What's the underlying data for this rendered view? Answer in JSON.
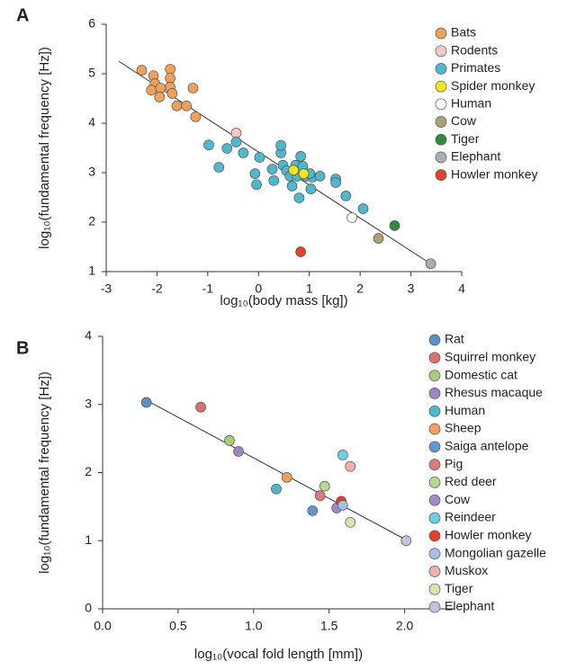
{
  "chart_data": [
    {
      "type": "scatter",
      "panel": "A",
      "x_label": "log₁₀(body mass [kg])",
      "y_label": "log₁₀(fundamental frequency [Hz])",
      "xlim": [
        -3,
        4
      ],
      "xticks": [
        -3,
        -2,
        -1,
        0,
        1,
        2,
        3,
        4
      ],
      "ylim": [
        1,
        6
      ],
      "yticks": [
        1,
        2,
        3,
        4,
        5,
        6
      ],
      "fit_line": {
        "x": [
          -2.75,
          3.4
        ],
        "y": [
          5.25,
          1.15
        ]
      },
      "series": [
        {
          "name": "Bats",
          "color": "#f0a05a",
          "x": [
            -2.3,
            -2.07,
            -2.04,
            -2.11,
            -1.93,
            -1.74,
            -1.74,
            -1.74,
            -1.95,
            -1.7,
            -1.61,
            -1.42,
            -1.29,
            -1.24
          ],
          "values": [
            5.07,
            4.96,
            4.8,
            4.67,
            4.71,
            5.09,
            4.91,
            4.73,
            4.53,
            4.6,
            4.35,
            4.35,
            4.71,
            4.13
          ]
        },
        {
          "name": "Rodents",
          "color": "#f5c8c8",
          "x": [
            -0.44
          ],
          "values": [
            3.8
          ]
        },
        {
          "name": "Primates",
          "color": "#4fb8cc",
          "x": [
            -0.98,
            -0.62,
            -0.44,
            -0.78,
            -0.3,
            -0.07,
            -0.04,
            0.02,
            0.27,
            0.3,
            0.44,
            0.48,
            0.55,
            0.62,
            0.66,
            0.73,
            0.76,
            0.83,
            0.87,
            0.8,
            0.94,
            1.06,
            1.21,
            1.03,
            1.52,
            1.52,
            1.72,
            2.06,
            0.44,
            1.01
          ],
          "values": [
            3.56,
            3.49,
            3.62,
            3.11,
            3.4,
            2.98,
            2.76,
            3.31,
            3.07,
            2.84,
            3.4,
            3.15,
            3.04,
            2.93,
            2.73,
            3.15,
            2.93,
            3.33,
            3.13,
            2.49,
            2.93,
            2.91,
            2.93,
            2.67,
            2.87,
            2.8,
            2.53,
            2.27,
            3.55,
            2.98
          ]
        },
        {
          "name": "Spider monkey",
          "color": "#f5e614",
          "x": [
            0.69,
            0.89
          ],
          "values": [
            3.05,
            2.98
          ]
        },
        {
          "name": "Human",
          "color": "#ffffff",
          "x": [
            1.84
          ],
          "values": [
            2.09
          ]
        },
        {
          "name": "Cow",
          "color": "#b0a070",
          "x": [
            2.36
          ],
          "values": [
            1.67
          ]
        },
        {
          "name": "Tiger",
          "color": "#2e8b3a",
          "x": [
            2.68
          ],
          "values": [
            1.93
          ]
        },
        {
          "name": "Elephant",
          "color": "#a9adb5",
          "x": [
            3.39
          ],
          "values": [
            1.16
          ]
        },
        {
          "name": "Howler monkey",
          "color": "#e8402a",
          "x": [
            0.83
          ],
          "values": [
            1.4
          ]
        }
      ]
    },
    {
      "type": "scatter",
      "panel": "B",
      "x_label": "log₁₀(vocal fold length [mm])",
      "y_label": "log₁₀(fundamental frequency [Hz])",
      "xlim": [
        0,
        2.33
      ],
      "xticks": [
        {
          "value": 0,
          "label": "0.0"
        },
        {
          "value": 0.5,
          "label": "0.5"
        },
        {
          "value": 1,
          "label": "1.0"
        },
        {
          "value": 1.5,
          "label": "1.5"
        },
        {
          "value": 2,
          "label": "2.0"
        }
      ],
      "ylim": [
        0,
        4
      ],
      "yticks": [
        0,
        1,
        2,
        3,
        4
      ],
      "fit_line": {
        "x": [
          0.3,
          2.02
        ],
        "y": [
          3.05,
          1.0
        ]
      },
      "series": [
        {
          "name": "Rat",
          "color": "#5b8fc7",
          "x": [
            0.29
          ],
          "values": [
            3.03
          ]
        },
        {
          "name": "Squirrel monkey",
          "color": "#d9706f",
          "x": [
            0.65
          ],
          "values": [
            2.96
          ]
        },
        {
          "name": "Domestic cat",
          "color": "#a8cc7a",
          "x": [
            0.84
          ],
          "values": [
            2.47
          ]
        },
        {
          "name": "Rhesus macaque",
          "color": "#9b86c0",
          "x": [
            0.9
          ],
          "values": [
            2.31
          ]
        },
        {
          "name": "Human",
          "color": "#4fb8cc",
          "x": [
            1.15
          ],
          "values": [
            1.76
          ]
        },
        {
          "name": "Sheep",
          "color": "#f0a05a",
          "x": [
            1.22
          ],
          "values": [
            1.93
          ]
        },
        {
          "name": "Saiga antelope",
          "color": "#5f97d0",
          "x": [
            1.39
          ],
          "values": [
            1.44
          ]
        },
        {
          "name": "Pig",
          "color": "#e07b7b",
          "x": [
            1.44
          ],
          "values": [
            1.66
          ]
        },
        {
          "name": "Red deer",
          "color": "#b8d98a",
          "x": [
            1.47
          ],
          "values": [
            1.8
          ]
        },
        {
          "name": "Cow",
          "color": "#a08ac8",
          "x": [
            1.55
          ],
          "values": [
            1.48
          ]
        },
        {
          "name": "Reindeer",
          "color": "#6ccfe0",
          "x": [
            1.59
          ],
          "values": [
            2.26
          ]
        },
        {
          "name": "Howler monkey",
          "color": "#e8402a",
          "x": [
            1.58
          ],
          "values": [
            1.58
          ]
        },
        {
          "name": "Mongolian gazelle",
          "color": "#a7bfe6",
          "x": [
            1.59
          ],
          "values": [
            1.52
          ]
        },
        {
          "name": "Muskox",
          "color": "#f0b0b0",
          "x": [
            1.64
          ],
          "values": [
            2.09
          ]
        },
        {
          "name": "Tiger",
          "color": "#d5e5b0",
          "x": [
            1.64
          ],
          "values": [
            1.27
          ]
        },
        {
          "name": "Elephant",
          "color": "#c9bfe0",
          "x": [
            2.01
          ],
          "values": [
            1.0
          ]
        }
      ]
    }
  ]
}
